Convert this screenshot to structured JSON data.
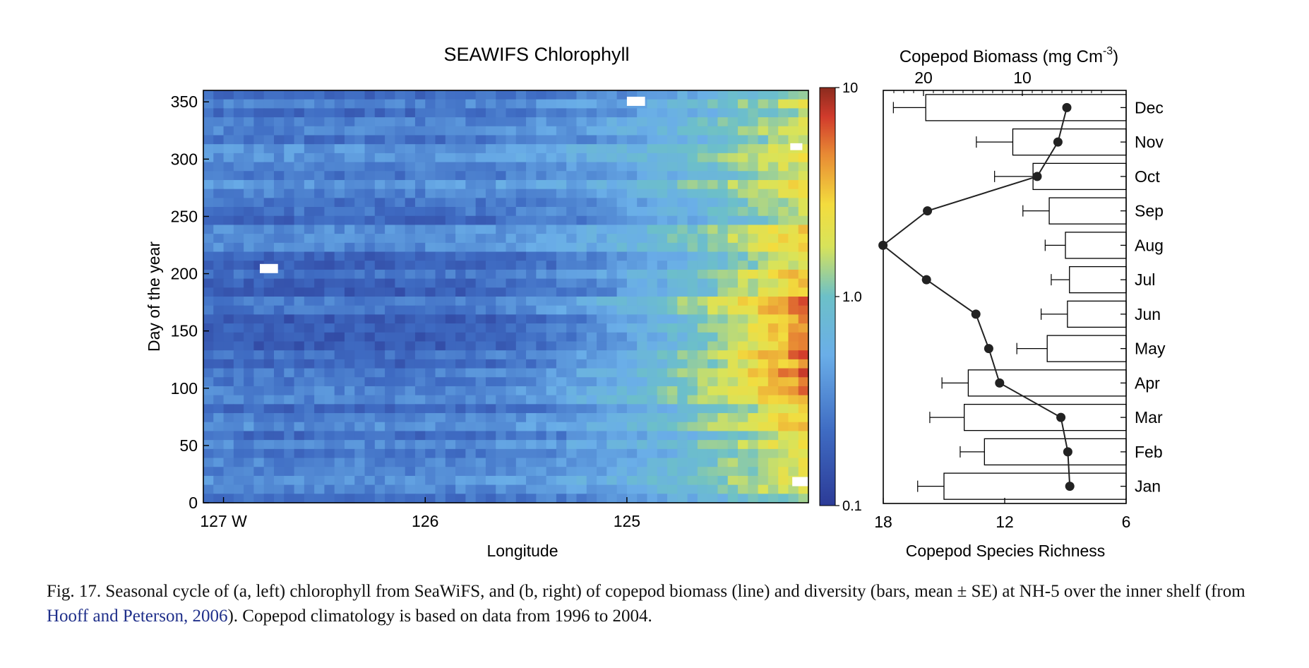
{
  "heatmap": {
    "title": "SEAWIFS Chlorophyll",
    "xlabel": "Longitude",
    "ylabel": "Day of the year",
    "x_ticks": [
      "127 W",
      "126",
      "125"
    ],
    "y_ticks": [
      "0",
      "50",
      "100",
      "150",
      "200",
      "250",
      "300",
      "350"
    ],
    "colorbar_ticks": [
      "10",
      "1.0",
      "0.1"
    ]
  },
  "copepod": {
    "top_xlabel_text": "Copepod Biomass (mg Cm",
    "top_xlabel_exp": "-3",
    "top_xlabel_close": ")",
    "top_ticks": [
      "20",
      "10"
    ],
    "bottom_xlabel": "Copepod Species Richness",
    "bottom_ticks": [
      "18",
      "12",
      "6"
    ],
    "months": [
      "Jan",
      "Feb",
      "Mar",
      "Apr",
      "May",
      "Jun",
      "Jul",
      "Aug",
      "Sep",
      "Oct",
      "Nov",
      "Dec"
    ]
  },
  "chart_data": [
    {
      "type": "heatmap",
      "title": "SEAWIFS Chlorophyll",
      "xlabel": "Longitude",
      "ylabel": "Day of the year",
      "xlim": [
        -127.1,
        -124.1
      ],
      "ylim": [
        0,
        360
      ],
      "color_scale": "log",
      "color_range": [
        0.1,
        10
      ],
      "description_values": {
        "offshore_winter": 0.3,
        "offshore_summer": 0.2,
        "nearshore_summer": 6.0,
        "nearshore_winter": 2.0
      }
    },
    {
      "type": "bar",
      "orientation": "horizontal",
      "xlabel": "Copepod Species Richness",
      "xlim": [
        18,
        6
      ],
      "categories": [
        "Jan",
        "Feb",
        "Mar",
        "Apr",
        "May",
        "Jun",
        "Jul",
        "Aug",
        "Sep",
        "Oct",
        "Nov",
        "Dec"
      ],
      "values": [
        15,
        13,
        14,
        13.8,
        9.9,
        8.9,
        8.8,
        9.0,
        9.8,
        10.6,
        11.6,
        15.9
      ],
      "error": [
        1.3,
        1.2,
        1.7,
        1.3,
        1.5,
        1.3,
        0.9,
        1.0,
        1.3,
        1.9,
        1.8,
        1.6
      ]
    },
    {
      "type": "line",
      "xlabel": "Copepod Biomass (mg Cm-3)",
      "categories": [
        "Jan",
        "Feb",
        "Mar",
        "Apr",
        "May",
        "Jun",
        "Jul",
        "Aug",
        "Sep",
        "Oct",
        "Nov",
        "Dec"
      ],
      "values": [
        5.2,
        5.4,
        6.1,
        12.3,
        13.4,
        14.7,
        19.7,
        24.1,
        19.6,
        8.5,
        6.4,
        5.5
      ]
    }
  ],
  "caption": {
    "part1": "Fig. 17.  Seasonal cycle of (a, left) chlorophyll from SeaWiFS, and (b, right) of copepod biomass (line) and diversity (bars, mean ± SE) at NH-5 over the inner shelf (from ",
    "link": "Hooff and Peterson, 2006",
    "part2": "). Copepod climatology is based on data from 1996 to 2004."
  }
}
